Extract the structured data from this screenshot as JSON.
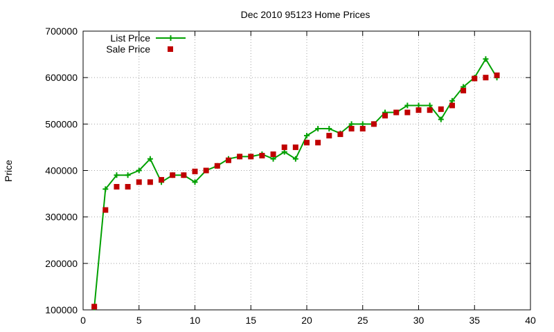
{
  "chart_data": {
    "type": "line",
    "title": "Dec 2010 95123 Home Prices",
    "xlabel": "",
    "ylabel": "Price",
    "xlim": [
      0,
      40
    ],
    "ylim": [
      100000,
      700000
    ],
    "x_ticks": [
      0,
      5,
      10,
      15,
      20,
      25,
      30,
      35,
      40
    ],
    "y_ticks": [
      100000,
      200000,
      300000,
      400000,
      500000,
      600000,
      700000
    ],
    "x_tick_labels": [
      "0",
      "5",
      "10",
      "15",
      "20",
      "25",
      "30",
      "35",
      "40"
    ],
    "y_tick_labels": [
      "100000",
      "200000",
      "300000",
      "400000",
      "500000",
      "600000",
      "700000"
    ],
    "grid": true,
    "legend_position": "top-left",
    "series": [
      {
        "name": "List Price",
        "style": "linespoints",
        "marker": "plus",
        "color": "#00a000",
        "x": [
          1,
          2,
          3,
          4,
          5,
          6,
          7,
          8,
          9,
          10,
          11,
          12,
          13,
          14,
          15,
          16,
          17,
          18,
          19,
          20,
          21,
          22,
          23,
          24,
          25,
          26,
          27,
          28,
          29,
          30,
          31,
          32,
          33,
          34,
          35,
          36,
          37
        ],
        "values": [
          105000,
          360000,
          390000,
          390000,
          400000,
          425000,
          375000,
          390000,
          390000,
          375000,
          400000,
          410000,
          425000,
          430000,
          430000,
          435000,
          425000,
          440000,
          425000,
          475000,
          490000,
          490000,
          480000,
          500000,
          500000,
          500000,
          525000,
          525000,
          540000,
          540000,
          540000,
          510000,
          550000,
          580000,
          600000,
          640000,
          600000
        ]
      },
      {
        "name": "Sale Price",
        "style": "points",
        "marker": "square",
        "color": "#c00000",
        "x": [
          1,
          2,
          3,
          4,
          5,
          6,
          7,
          8,
          9,
          10,
          11,
          12,
          13,
          14,
          15,
          16,
          17,
          18,
          19,
          20,
          21,
          22,
          23,
          24,
          25,
          26,
          27,
          28,
          29,
          30,
          31,
          32,
          33,
          34,
          35,
          36,
          37
        ],
        "values": [
          107000,
          315000,
          365000,
          365000,
          375000,
          375000,
          380000,
          390000,
          390000,
          398000,
          400000,
          410000,
          422000,
          430000,
          430000,
          432000,
          435000,
          450000,
          450000,
          460000,
          460000,
          475000,
          478000,
          490000,
          490000,
          500000,
          518000,
          525000,
          525000,
          530000,
          530000,
          532000,
          540000,
          572000,
          598000,
          600000,
          605000
        ]
      }
    ]
  }
}
